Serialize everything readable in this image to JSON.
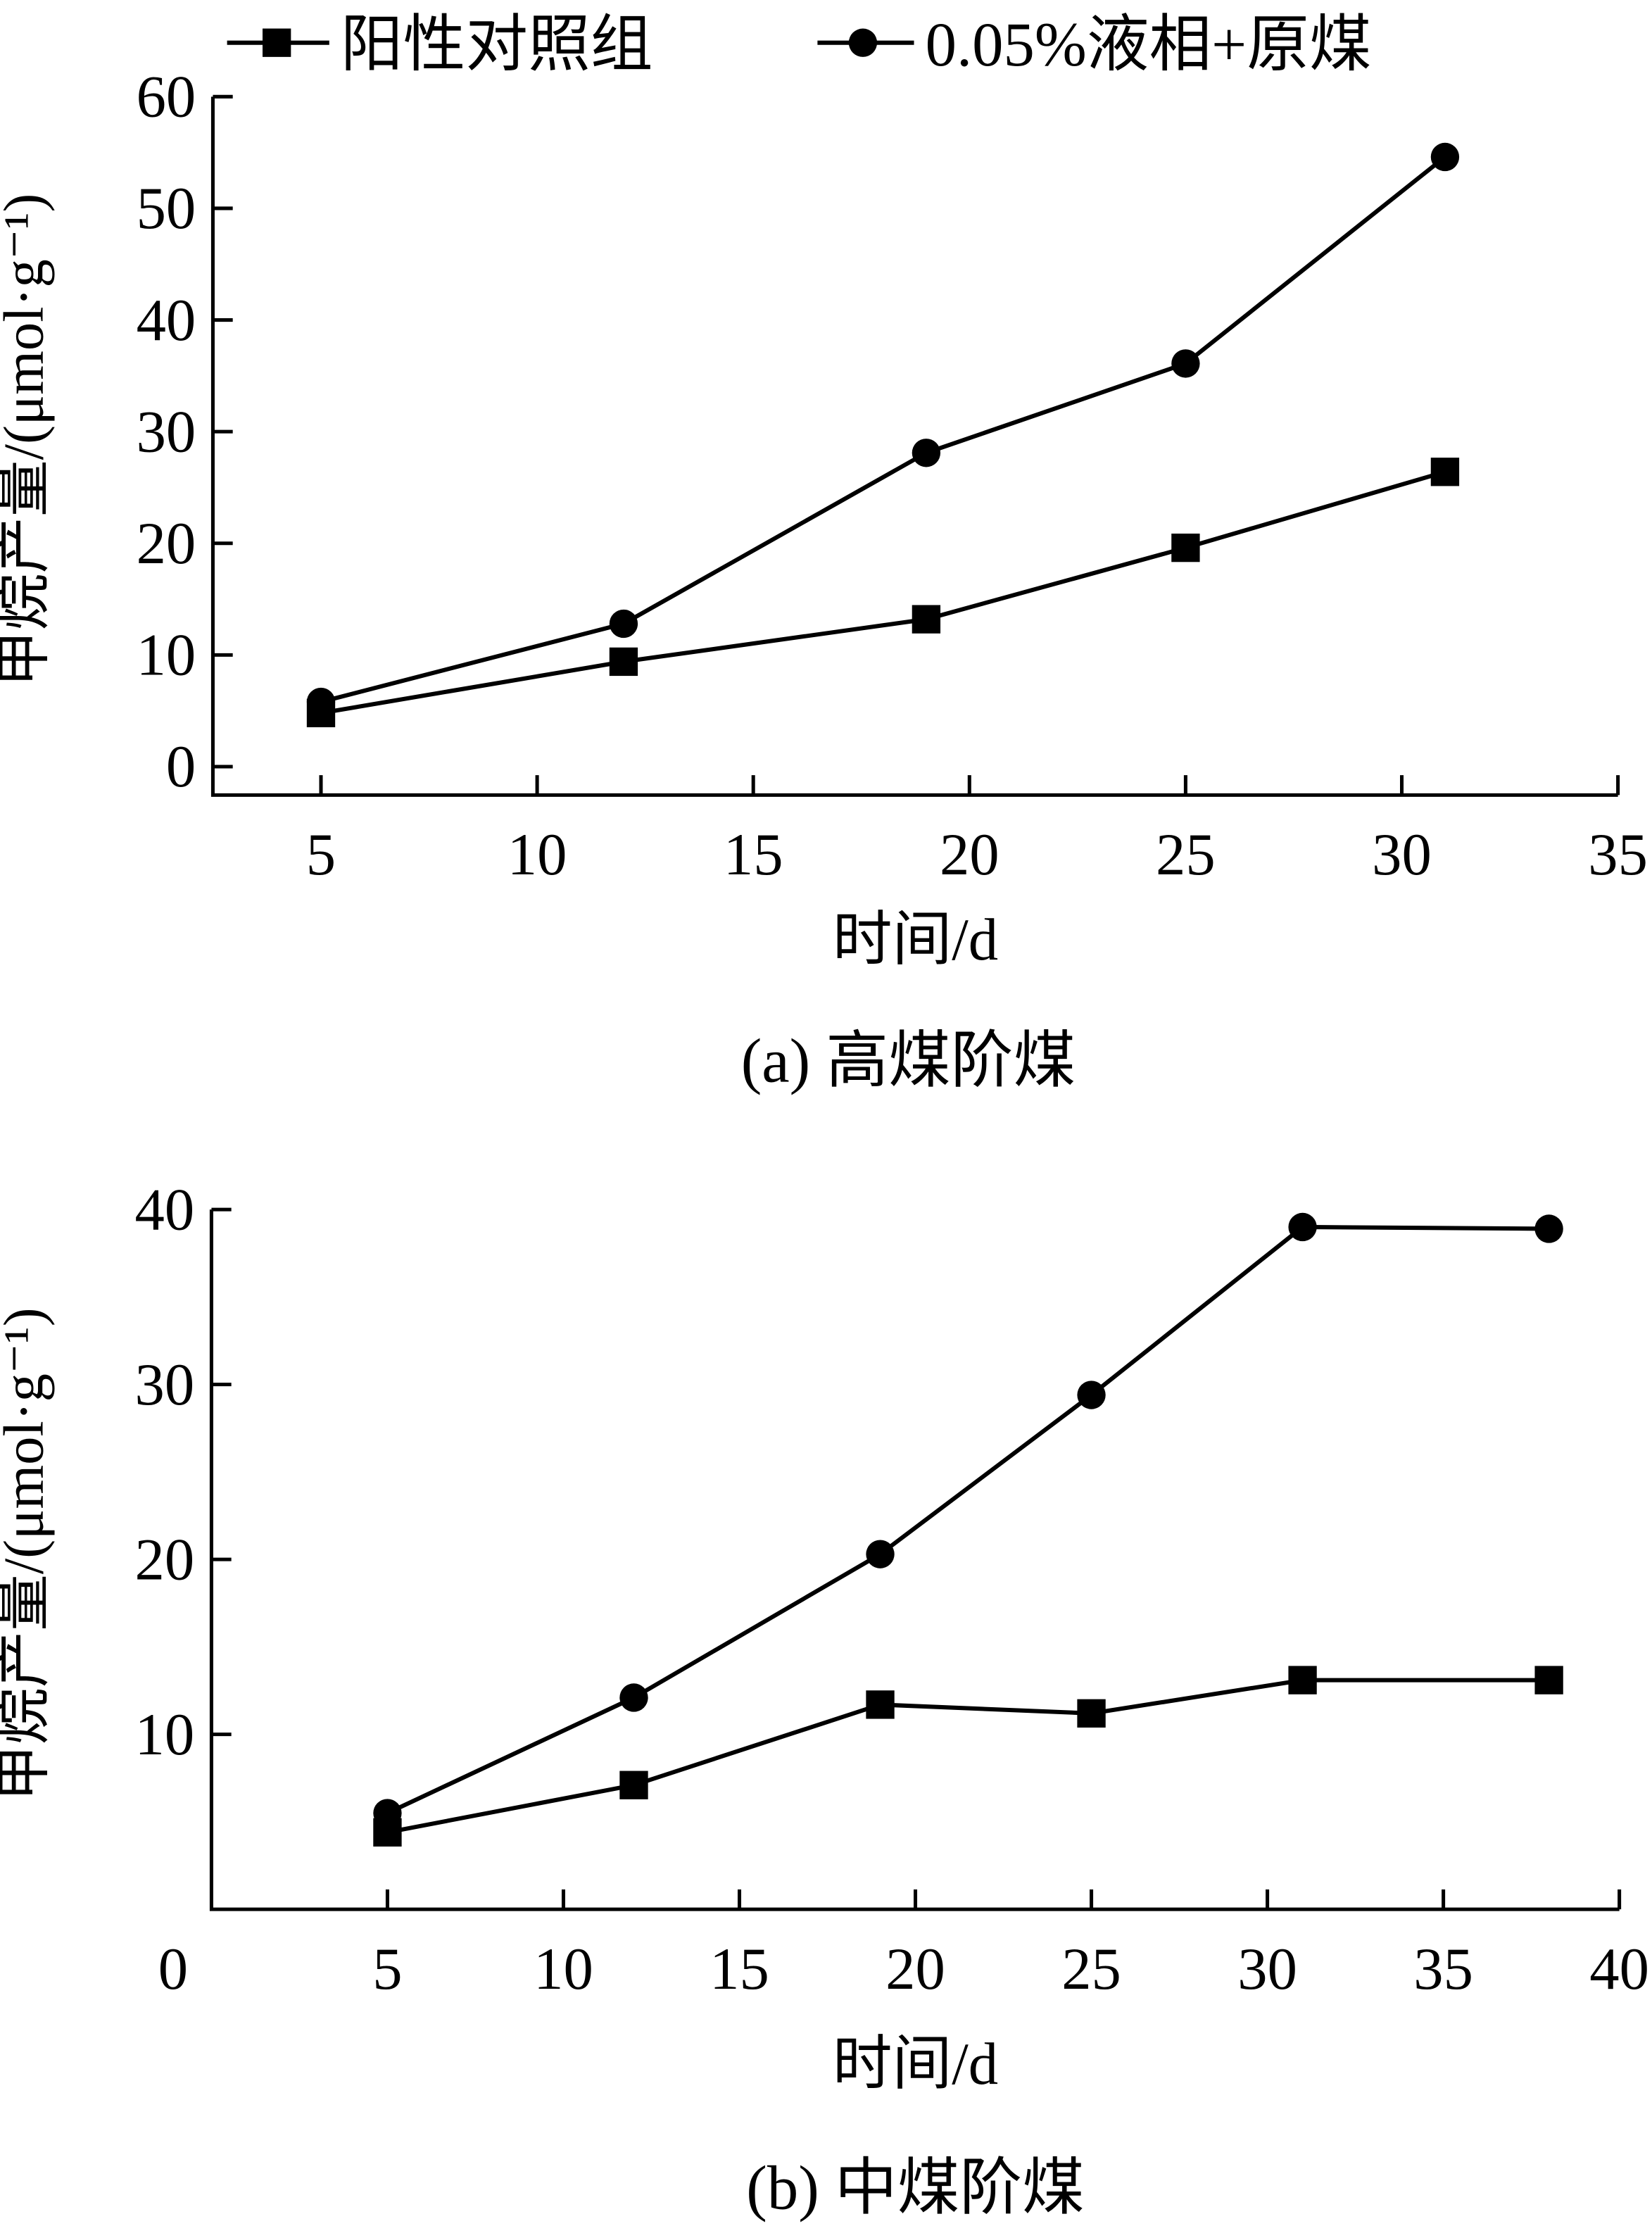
{
  "legend": [
    {
      "name": "阳性对照组",
      "marker": "square"
    },
    {
      "name": "0.05%液相+原煤",
      "marker": "circle"
    }
  ],
  "colors": {
    "line": "#000000",
    "background": "#ffffff"
  },
  "chart_data": [
    {
      "type": "line",
      "caption": "(a)  高煤阶煤",
      "xlabel": "时间/d",
      "ylabel": "甲烷产量/(μmol·g⁻¹)",
      "xlim": [
        2.5,
        35
      ],
      "ylim": [
        0,
        60
      ],
      "xticks": [
        5,
        10,
        15,
        20,
        25,
        30,
        35
      ],
      "yticks": [
        0,
        10,
        20,
        30,
        40,
        50,
        60
      ],
      "grid": false,
      "legend_position": "top",
      "series": [
        {
          "name": "阳性对照组",
          "marker": "square",
          "x": [
            5,
            12,
            19,
            25,
            31
          ],
          "y": [
            4.8,
            9.4,
            13.2,
            19.6,
            26.4
          ]
        },
        {
          "name": "0.05%液相+原煤",
          "marker": "circle",
          "x": [
            5,
            12,
            19,
            25,
            31
          ],
          "y": [
            5.8,
            12.8,
            28.1,
            36.1,
            54.6
          ]
        }
      ]
    },
    {
      "type": "line",
      "caption": "(b)  中煤阶煤",
      "xlabel": "时间/d",
      "ylabel": "甲烷产量/(μmol·g⁻¹)",
      "xlim": [
        0,
        40
      ],
      "ylim": [
        0,
        40
      ],
      "xticks": [
        0,
        5,
        10,
        15,
        20,
        25,
        30,
        35,
        40
      ],
      "yticks": [
        10,
        20,
        30,
        40
      ],
      "grid": false,
      "legend_position": "top",
      "series": [
        {
          "name": "阳性对照组",
          "marker": "square",
          "x": [
            5,
            12,
            19,
            25,
            31,
            38
          ],
          "y": [
            4.4,
            7.1,
            11.7,
            11.2,
            13.1,
            13.1
          ]
        },
        {
          "name": "0.05%液相+原煤",
          "marker": "circle",
          "x": [
            5,
            12,
            19,
            25,
            31,
            38
          ],
          "y": [
            5.5,
            12.1,
            20.3,
            29.4,
            39.0,
            38.9
          ]
        }
      ]
    }
  ]
}
